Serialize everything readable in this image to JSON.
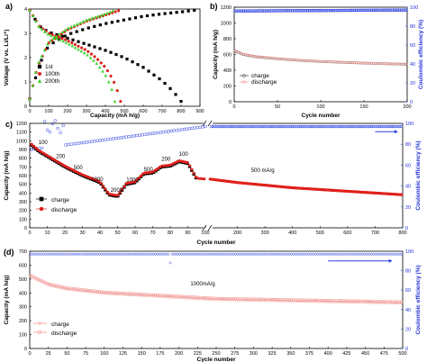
{
  "colors": {
    "black": "#000000",
    "red": "#e0201b",
    "green": "#3bd62f",
    "blue": "#2b3fe0",
    "light_red": "#f08a86"
  },
  "chart_data": [
    {
      "id": "a",
      "type": "line",
      "panel_label": "a)",
      "xlabel": "Capacity (mA h/g)",
      "ylabel": "Voltage (V vs. Li/Li⁺)",
      "xlim": [
        0,
        900
      ],
      "ylim": [
        0,
        4
      ],
      "x_ticks": [
        0,
        100,
        200,
        300,
        400,
        500,
        600,
        700,
        800,
        900
      ],
      "y_ticks": [
        0,
        1,
        2,
        3,
        4
      ],
      "legend_position": "bottom-left",
      "series": [
        {
          "name": "1st",
          "color": "#000000",
          "discharge": [
            [
              0,
              3.95
            ],
            [
              50,
              3.3
            ],
            [
              100,
              3.05
            ],
            [
              200,
              2.8
            ],
            [
              300,
              2.55
            ],
            [
              400,
              2.3
            ],
            [
              500,
              2.0
            ],
            [
              600,
              1.6
            ],
            [
              700,
              1.05
            ],
            [
              760,
              0.6
            ],
            [
              800,
              0.2
            ]
          ],
          "charge": [
            [
              0,
              0.3
            ],
            [
              50,
              1.7
            ],
            [
              100,
              2.5
            ],
            [
              200,
              2.95
            ],
            [
              300,
              3.2
            ],
            [
              400,
              3.4
            ],
            [
              500,
              3.55
            ],
            [
              600,
              3.7
            ],
            [
              700,
              3.8
            ],
            [
              800,
              3.88
            ],
            [
              870,
              3.95
            ]
          ]
        },
        {
          "name": "100th",
          "color": "#e0201b",
          "discharge": [
            [
              0,
              3.95
            ],
            [
              50,
              3.3
            ],
            [
              100,
              3.0
            ],
            [
              200,
              2.7
            ],
            [
              300,
              2.3
            ],
            [
              350,
              2.0
            ],
            [
              400,
              1.6
            ],
            [
              440,
              1.1
            ],
            [
              470,
              0.5
            ],
            [
              480,
              0.2
            ]
          ],
          "charge": [
            [
              0,
              0.3
            ],
            [
              40,
              1.6
            ],
            [
              100,
              2.6
            ],
            [
              200,
              3.15
            ],
            [
              300,
              3.5
            ],
            [
              400,
              3.75
            ],
            [
              470,
              3.93
            ]
          ]
        },
        {
          "name": "200th",
          "color": "#3bd62f",
          "discharge": [
            [
              0,
              3.95
            ],
            [
              50,
              3.25
            ],
            [
              100,
              2.95
            ],
            [
              200,
              2.6
            ],
            [
              300,
              2.15
            ],
            [
              350,
              1.8
            ],
            [
              400,
              1.3
            ],
            [
              430,
              0.8
            ],
            [
              445,
              0.4
            ],
            [
              450,
              0.2
            ]
          ],
          "charge": [
            [
              0,
              0.3
            ],
            [
              40,
              1.7
            ],
            [
              100,
              2.65
            ],
            [
              200,
              3.2
            ],
            [
              300,
              3.55
            ],
            [
              400,
              3.8
            ],
            [
              440,
              3.93
            ]
          ]
        }
      ]
    },
    {
      "id": "b",
      "type": "scatter",
      "panel_label": "b)",
      "xlabel": "Cycle number",
      "ylabel": "Capacity (mA h/g)",
      "y2label": "Coulombic efficiency (%)",
      "xlim": [
        0,
        200
      ],
      "ylim": [
        0,
        1200
      ],
      "y2lim": [
        0,
        100
      ],
      "x_ticks": [
        0,
        50,
        100,
        150,
        200
      ],
      "y_ticks": [
        0,
        200,
        400,
        600,
        800,
        1000,
        1200
      ],
      "y2_ticks": [
        0,
        20,
        40,
        60,
        80,
        100
      ],
      "legend_position": "bottom-left",
      "series": [
        {
          "name": "charge",
          "axis": "left",
          "color": "#000000",
          "x": [
            1,
            10,
            25,
            50,
            75,
            100,
            125,
            150,
            175,
            200
          ],
          "y": [
            640,
            600,
            570,
            545,
            525,
            510,
            500,
            490,
            482,
            475
          ]
        },
        {
          "name": "discharge",
          "axis": "left",
          "color": "#e0201b",
          "x": [
            1,
            10,
            25,
            50,
            75,
            100,
            125,
            150,
            175,
            200
          ],
          "y": [
            650,
            605,
            575,
            548,
            528,
            512,
            502,
            492,
            484,
            478
          ]
        },
        {
          "name": "Coulombic efficiency",
          "axis": "right",
          "color": "#2b3fe0",
          "x": [
            1,
            200
          ],
          "y": [
            96,
            97
          ]
        }
      ]
    },
    {
      "id": "c",
      "type": "scatter",
      "panel_label": "c)",
      "xlabel": "Cycle number",
      "ylabel": "Capacity (mA h/g)",
      "y2label": "Coulombic efficiency (%)",
      "xlim": [
        0,
        800
      ],
      "ylim": [
        0,
        1200
      ],
      "y2lim": [
        0,
        100
      ],
      "x_ticks": [
        0,
        10,
        20,
        30,
        40,
        50,
        60,
        70,
        80,
        90,
        100,
        200,
        300,
        400,
        500,
        600,
        700,
        800
      ],
      "y_ticks": [
        0,
        100,
        200,
        300,
        400,
        500,
        600,
        700,
        800,
        900,
        1000,
        1100,
        1200
      ],
      "y2_ticks": [
        0,
        20,
        40,
        60,
        80,
        100
      ],
      "axis_break": true,
      "legend_position": "bottom-left",
      "rate_labels": [
        {
          "text": "100",
          "x": 5,
          "y": 960
        },
        {
          "text": "200",
          "x": 15,
          "y": 800
        },
        {
          "text": "500",
          "x": 25,
          "y": 670
        },
        {
          "text": "1000",
          "x": 35,
          "y": 540
        },
        {
          "text": "2000",
          "x": 46,
          "y": 415
        },
        {
          "text": "1000",
          "x": 55,
          "y": 535
        },
        {
          "text": "500",
          "x": 65,
          "y": 650
        },
        {
          "text": "200",
          "x": 75,
          "y": 770
        },
        {
          "text": "100",
          "x": 85,
          "y": 830
        },
        {
          "text": "500 mA/g",
          "x": 250,
          "y": 640
        }
      ],
      "series": [
        {
          "name": "charge",
          "axis": "left",
          "color": "#000000",
          "x": [
            1,
            5,
            10,
            15,
            20,
            25,
            30,
            35,
            40,
            45,
            50,
            55,
            60,
            65,
            70,
            75,
            80,
            85,
            90,
            95
          ],
          "y": [
            950,
            880,
            820,
            760,
            700,
            650,
            600,
            560,
            520,
            380,
            360,
            500,
            520,
            620,
            630,
            700,
            710,
            760,
            740,
            560
          ]
        },
        {
          "name": "discharge",
          "axis": "left",
          "color": "#e0201b",
          "x": [
            1,
            5,
            10,
            15,
            20,
            25,
            30,
            35,
            40,
            45,
            50,
            55,
            60,
            65,
            70,
            75,
            80,
            85,
            90,
            95,
            100,
            200,
            300,
            400,
            500,
            600,
            700,
            800
          ],
          "y": [
            960,
            890,
            830,
            770,
            710,
            660,
            610,
            570,
            530,
            390,
            370,
            510,
            530,
            630,
            640,
            710,
            720,
            770,
            750,
            570,
            560,
            520,
            490,
            460,
            440,
            420,
            400,
            380
          ]
        },
        {
          "name": "Coulombic efficiency",
          "axis": "right",
          "color": "#2b3fe0",
          "x": [
            1,
            100,
            800
          ],
          "y": [
            75,
            97,
            97
          ]
        }
      ]
    },
    {
      "id": "d",
      "type": "scatter",
      "panel_label": "(d)",
      "xlabel": "Cycle number",
      "ylabel": "Capacity (mA h/g)",
      "y2label": "Coulombic efficiency (%)",
      "xlim": [
        0,
        500
      ],
      "ylim": [
        0,
        700
      ],
      "y2lim": [
        0,
        100
      ],
      "x_ticks": [
        0,
        25,
        50,
        75,
        100,
        125,
        150,
        175,
        200,
        225,
        250,
        275,
        300,
        325,
        350,
        375,
        400,
        425,
        450,
        475,
        500
      ],
      "y_ticks": [
        0,
        100,
        200,
        300,
        400,
        500,
        600,
        700
      ],
      "y2_ticks": [
        0,
        20,
        40,
        60,
        80,
        100
      ],
      "annotation": "1000mA/g",
      "legend_position": "bottom-left",
      "series": [
        {
          "name": "charge",
          "axis": "left",
          "color": "#e0201b",
          "x": [
            1,
            25,
            50,
            100,
            150,
            200,
            250,
            300,
            350,
            400,
            450,
            500
          ],
          "y": [
            520,
            460,
            430,
            400,
            385,
            370,
            355,
            350,
            345,
            340,
            335,
            330
          ]
        },
        {
          "name": "discharge",
          "axis": "left",
          "color": "#e0201b",
          "x": [
            1,
            25,
            50,
            100,
            150,
            200,
            250,
            300,
            350,
            400,
            450,
            500
          ],
          "y": [
            525,
            462,
            432,
            402,
            387,
            372,
            357,
            352,
            347,
            342,
            337,
            332
          ]
        },
        {
          "name": "Coulombic efficiency",
          "axis": "right",
          "color": "#2b3fe0",
          "x": [
            1,
            500
          ],
          "y": [
            97,
            97
          ]
        }
      ]
    }
  ]
}
